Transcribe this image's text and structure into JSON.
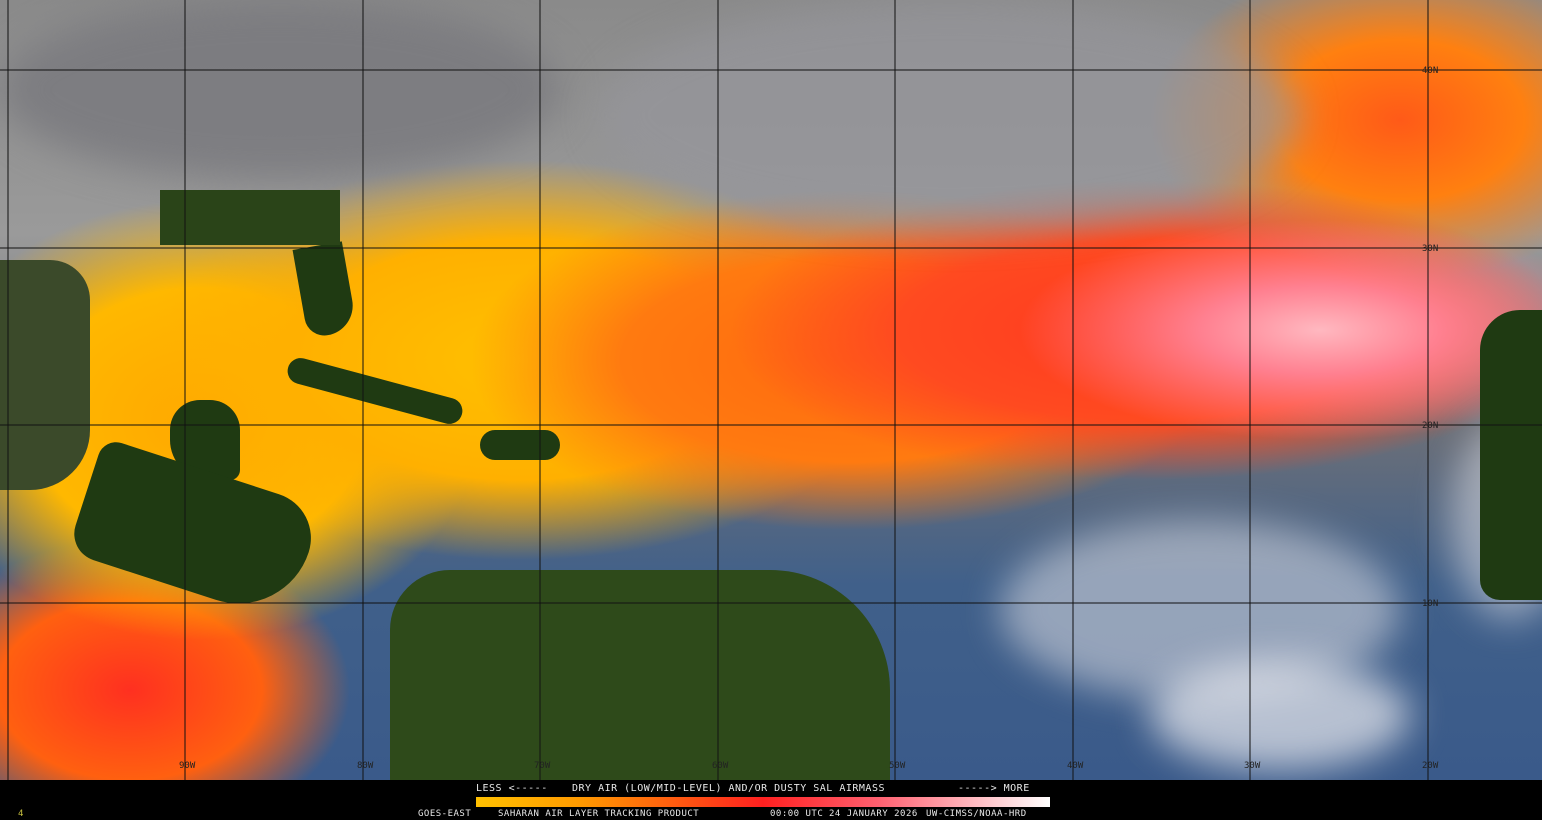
{
  "product": {
    "satellite": "GOES-EAST",
    "title": "SAHARAN AIR LAYER TRACKING PRODUCT",
    "time": "00:00 UTC",
    "date": "24 JANUARY 2026",
    "credit": "UW-CIMSS/NOAA-HRD",
    "frame_number": "4"
  },
  "legend": {
    "less_label": "LESS <-----",
    "description": "DRY AIR (LOW/MID-LEVEL) AND/OR DUSTY SAL AIRMASS",
    "more_label": "-----> MORE",
    "colors": [
      "#ffc000",
      "#ff9a00",
      "#ff5a10",
      "#ff2020",
      "#ff6070",
      "#ffb0b8",
      "#ffffff"
    ]
  },
  "grid": {
    "longitudes": [
      "90W",
      "80W",
      "70W",
      "60W",
      "50W",
      "40W",
      "30W",
      "20W"
    ],
    "latitudes": [
      "40N",
      "30N",
      "20N",
      "10N"
    ]
  }
}
